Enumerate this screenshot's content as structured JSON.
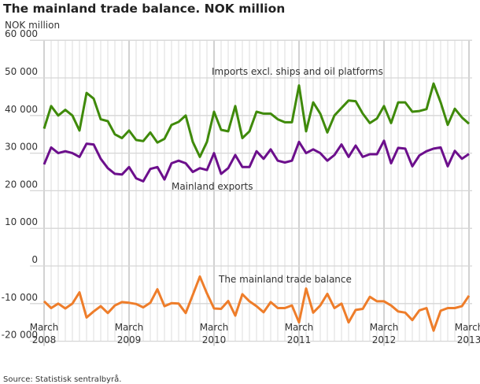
{
  "chart_data": {
    "type": "line",
    "title": "The mainland trade balance. NOK million",
    "ylabel": "NOK million",
    "source": "Source: Statistisk sentralbyrå.",
    "ylim": [
      -20000,
      60000
    ],
    "yticks": [
      -20000,
      -10000,
      0,
      10000,
      20000,
      30000,
      40000,
      50000,
      60000
    ],
    "ytick_labels": [
      "-20 000",
      "-10 000",
      "0",
      "10 000",
      "20 000",
      "30 000",
      "40 000",
      "50 000",
      "60 000"
    ],
    "x_start": "2008-03",
    "x_end": "2013-03",
    "x_frequency": "monthly",
    "xtick_labels": [
      {
        "month": "March",
        "year": "2008"
      },
      {
        "month": "March",
        "year": "2009"
      },
      {
        "month": "March",
        "year": "2010"
      },
      {
        "month": "March",
        "year": "2011"
      },
      {
        "month": "March",
        "year": "2012"
      },
      {
        "month": "March",
        "year": "2013"
      }
    ],
    "grid": true,
    "series": [
      {
        "name": "Imports excl. ships and oil platforms",
        "color": "#3f8a0a",
        "values": [
          36500,
          42500,
          40000,
          41500,
          40000,
          36000,
          46000,
          44500,
          39000,
          38500,
          35000,
          34000,
          36000,
          33500,
          33200,
          35500,
          32800,
          33800,
          37500,
          38300,
          40000,
          33000,
          29000,
          33000,
          41000,
          36200,
          35800,
          42500,
          34000,
          35800,
          41000,
          40500,
          40500,
          39000,
          38200,
          38200,
          48000,
          35800,
          43500,
          40500,
          35500,
          40000,
          42000,
          44000,
          43800,
          40500,
          38000,
          39200,
          42500,
          38000,
          43500,
          43500,
          41000,
          41200,
          41700,
          48500,
          43500,
          37500,
          41800,
          39500,
          37800
        ]
      },
      {
        "name": "Mainland exports",
        "color": "#6c0f8c",
        "values": [
          27000,
          31500,
          30000,
          30500,
          30000,
          29000,
          32500,
          32300,
          28500,
          26000,
          24500,
          24300,
          26300,
          23300,
          22500,
          25800,
          26300,
          23000,
          27300,
          28000,
          27300,
          25000,
          26000,
          25500,
          30000,
          24500,
          26000,
          29500,
          26300,
          26300,
          30500,
          28500,
          31000,
          28000,
          27500,
          28000,
          33000,
          30000,
          31000,
          30000,
          28000,
          29500,
          32300,
          29000,
          32000,
          29000,
          29700,
          29700,
          33300,
          27300,
          31400,
          31200,
          26500,
          29400,
          30500,
          31200,
          31500,
          26500,
          30600,
          28500,
          29800
        ]
      },
      {
        "name": "The mainland trade balance",
        "color": "#ee7d2a",
        "values": [
          -9400,
          -11200,
          -10000,
          -11300,
          -10000,
          -7000,
          -13700,
          -12100,
          -10700,
          -12500,
          -10500,
          -9600,
          -9800,
          -10100,
          -11000,
          -9800,
          -6200,
          -10700,
          -9900,
          -10000,
          -12500,
          -7700,
          -2800,
          -7300,
          -11300,
          -11400,
          -9300,
          -13200,
          -7500,
          -9400,
          -10700,
          -12300,
          -9600,
          -11200,
          -11200,
          -10500,
          -15000,
          -6000,
          -12400,
          -10500,
          -7400,
          -11200,
          -10000,
          -15000,
          -11700,
          -11400,
          -8200,
          -9400,
          -9400,
          -10500,
          -12100,
          -12400,
          -14400,
          -11800,
          -11200,
          -17200,
          -11900,
          -11200,
          -11200,
          -10700,
          -7900
        ]
      }
    ]
  }
}
